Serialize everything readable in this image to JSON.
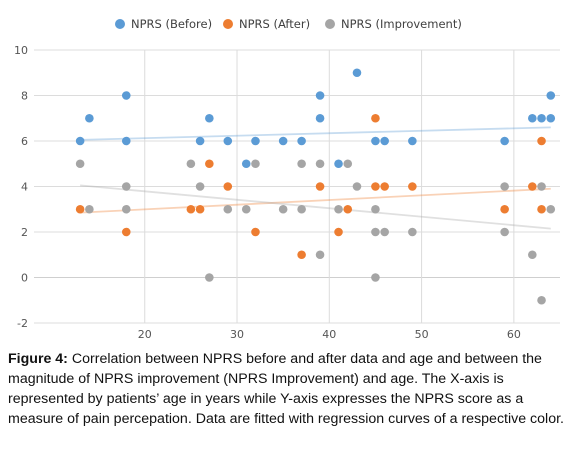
{
  "chart_data": {
    "type": "scatter",
    "title": "",
    "xlabel": "",
    "ylabel": "",
    "xlim": [
      8,
      65
    ],
    "ylim": [
      -2,
      10
    ],
    "x_ticks": [
      20,
      30,
      40,
      50,
      60
    ],
    "y_ticks": [
      -2,
      0,
      2,
      4,
      6,
      8,
      10
    ],
    "grid": true,
    "legend_position": "top-center",
    "series": [
      {
        "name": "NPRS (Before)",
        "color": "#5B9BD5",
        "points": [
          [
            13,
            6
          ],
          [
            14,
            7
          ],
          [
            18,
            8
          ],
          [
            18,
            6
          ],
          [
            26,
            6
          ],
          [
            27,
            7
          ],
          [
            29,
            6
          ],
          [
            31,
            5
          ],
          [
            32,
            6
          ],
          [
            35,
            6
          ],
          [
            37,
            6
          ],
          [
            39,
            8
          ],
          [
            39,
            7
          ],
          [
            41,
            5
          ],
          [
            43,
            9
          ],
          [
            45,
            6
          ],
          [
            46,
            6
          ],
          [
            49,
            6
          ],
          [
            59,
            6
          ],
          [
            62,
            7
          ],
          [
            63,
            7
          ],
          [
            64,
            8
          ],
          [
            64,
            7
          ]
        ],
        "trendline": {
          "x": [
            13,
            64
          ],
          "y": [
            6.05,
            6.6
          ]
        }
      },
      {
        "name": "NPRS (After)",
        "color": "#ED7D31",
        "points": [
          [
            13,
            3
          ],
          [
            18,
            2
          ],
          [
            25,
            3
          ],
          [
            26,
            3
          ],
          [
            27,
            5
          ],
          [
            29,
            4
          ],
          [
            32,
            2
          ],
          [
            37,
            1
          ],
          [
            39,
            4
          ],
          [
            41,
            2
          ],
          [
            42,
            3
          ],
          [
            45,
            7
          ],
          [
            45,
            4
          ],
          [
            46,
            4
          ],
          [
            49,
            4
          ],
          [
            59,
            3
          ],
          [
            62,
            4
          ],
          [
            63,
            6
          ],
          [
            63,
            3
          ]
        ],
        "trendline": {
          "x": [
            13,
            64
          ],
          "y": [
            2.85,
            3.9
          ]
        }
      },
      {
        "name": "NPRS (Improvement)",
        "color": "#A5A5A5",
        "points": [
          [
            13,
            5
          ],
          [
            14,
            3
          ],
          [
            18,
            4
          ],
          [
            18,
            3
          ],
          [
            25,
            5
          ],
          [
            26,
            4
          ],
          [
            27,
            0
          ],
          [
            29,
            3
          ],
          [
            31,
            3
          ],
          [
            32,
            5
          ],
          [
            35,
            3
          ],
          [
            37,
            5
          ],
          [
            37,
            3
          ],
          [
            39,
            5
          ],
          [
            39,
            1
          ],
          [
            41,
            3
          ],
          [
            42,
            5
          ],
          [
            43,
            4
          ],
          [
            45,
            3
          ],
          [
            45,
            2
          ],
          [
            45,
            0
          ],
          [
            46,
            2
          ],
          [
            49,
            2
          ],
          [
            59,
            4
          ],
          [
            59,
            2
          ],
          [
            62,
            1
          ],
          [
            63,
            4
          ],
          [
            63,
            -1
          ],
          [
            64,
            3
          ]
        ],
        "trendline": {
          "x": [
            13,
            64
          ],
          "y": [
            4.05,
            2.15
          ]
        }
      }
    ]
  },
  "caption": {
    "label": "Figure 4:",
    "text": " Correlation between NPRS before and after data and age and between the magnitude of NPRS improvement (NPRS Improvement) and age. The X-axis is represented by patients’ age in years while Y-axis expresses the NPRS score as a measure of pain percepation. Data are fitted with regression curves of a respective color."
  }
}
